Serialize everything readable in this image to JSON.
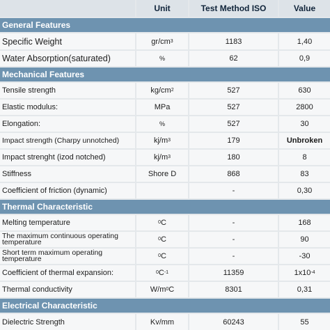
{
  "header": {
    "col_unit": "Unit",
    "col_method": "Test Method ISO",
    "col_value": "Value"
  },
  "sections": {
    "general": "General Features",
    "mechanical": "Mechanical Features",
    "thermal": "Thermal Characteristic",
    "electrical": "Electrical Characteristic"
  },
  "rows": [
    {
      "property": "Specific Weight",
      "unit_base": "gr/cm",
      "unit_sup": "3",
      "method": "1183",
      "value": "1,40"
    },
    {
      "property": "Water Absorption(saturated)",
      "unit_base": "%",
      "unit_sup": "",
      "method": "62",
      "value": "0,9"
    },
    {
      "property": "Tensile strength",
      "unit_base": "kg/cm",
      "unit_sup": "2",
      "method": "527",
      "value": "630"
    },
    {
      "property": "Elastic modulus:",
      "unit_base": "MPa",
      "unit_sup": "",
      "method": "527",
      "value": "2800"
    },
    {
      "property": "Elongation:",
      "unit_base": "%",
      "unit_sup": "",
      "method": "527",
      "value": "30"
    },
    {
      "property": "Impact strength (Charpy unnotched)",
      "unit_base": "kj/m",
      "unit_sup": "3",
      "method": "179",
      "value": "Unbroken"
    },
    {
      "property": "Impact strenght (izod notched)",
      "unit_base": "kj/m",
      "unit_sup": "3",
      "method": "180",
      "value": "8"
    },
    {
      "property": "Stiffness",
      "unit_base": "Shore D",
      "unit_sup": "",
      "method": "868",
      "value": "83"
    },
    {
      "property": "Coefficient of friction (dynamic)",
      "unit_base": "",
      "unit_sup": "",
      "method": "-",
      "value": "0,30"
    },
    {
      "property": "Melting temperature",
      "unit_base": "C",
      "unit_pre_sup": "0",
      "method": "-",
      "value": "168"
    },
    {
      "property": "The maximum continuous operating temperature",
      "unit_base": "C",
      "unit_pre_sup": "0",
      "method": "-",
      "value": "90"
    },
    {
      "property": "Short term maximum operating temperature",
      "unit_base": "C",
      "unit_pre_sup": "0",
      "method": "-",
      "value": "-30"
    },
    {
      "property": "Coefficient of thermal expansion:",
      "unit_base": "C",
      "unit_pre_sup": "0",
      "unit_sup": "-1",
      "method": "11359",
      "value_base": "1x10",
      "value_sup": "-4"
    },
    {
      "property": "Thermal conductivity",
      "unit_base": "W/m",
      "unit_mid_sup": "0",
      "unit_tail": "C",
      "method": "8301",
      "value": "0,31"
    },
    {
      "property": "Dielectric Strength",
      "unit_base": "Kv/mm",
      "unit_sup": "",
      "method": "60243",
      "value": "55"
    }
  ]
}
